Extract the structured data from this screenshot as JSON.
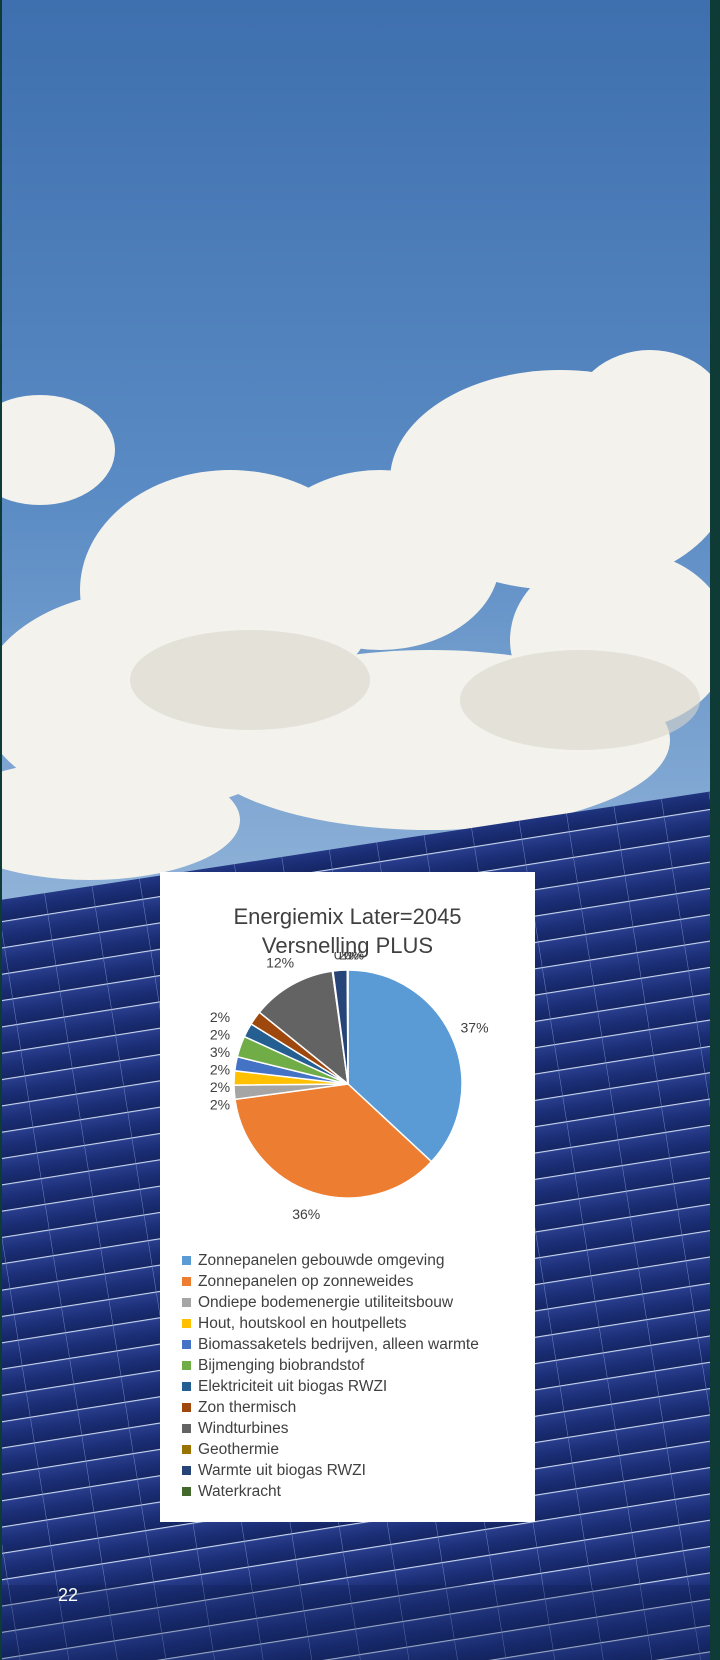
{
  "page_number": "22",
  "chart_data": {
    "type": "pie",
    "title_line1": "Energiemix Later=2045",
    "title_line2": "Versnelling PLUS",
    "legend_position": "bottom",
    "series": [
      {
        "name": "Zonnepanelen gebouwde omgeving",
        "value": 37,
        "label": "37%",
        "color": "#5b9bd5"
      },
      {
        "name": "Zonnepanelen op zonneweides",
        "value": 36,
        "label": "36%",
        "color": "#ed7d31"
      },
      {
        "name": "Ondiepe bodemenergie utiliteitsbouw",
        "value": 2,
        "label": "2%",
        "color": "#a5a5a5"
      },
      {
        "name": "Hout, houtskool en houtpellets",
        "value": 2,
        "label": "2%",
        "color": "#ffc000"
      },
      {
        "name": "Biomassaketels bedrijven, alleen warmte",
        "value": 2,
        "label": "2%",
        "color": "#4472c4"
      },
      {
        "name": "Bijmenging biobrandstof",
        "value": 3,
        "label": "3%",
        "color": "#70ad47"
      },
      {
        "name": "Elektriciteit uit biogas RWZI",
        "value": 2,
        "label": "2%",
        "color": "#255e91"
      },
      {
        "name": "Zon thermisch",
        "value": 2,
        "label": "2%",
        "color": "#9e480e"
      },
      {
        "name": "Windturbines",
        "value": 12,
        "label": "12%",
        "color": "#636363"
      },
      {
        "name": "Geothermie",
        "value": 0.1,
        "label": "0%",
        "color": "#997300"
      },
      {
        "name": "Warmte uit biogas RWZI",
        "value": 2,
        "label": "2%",
        "color": "#264478"
      },
      {
        "name": "Waterkracht",
        "value": 0.1,
        "label": "0%",
        "color": "#43682b"
      }
    ]
  }
}
